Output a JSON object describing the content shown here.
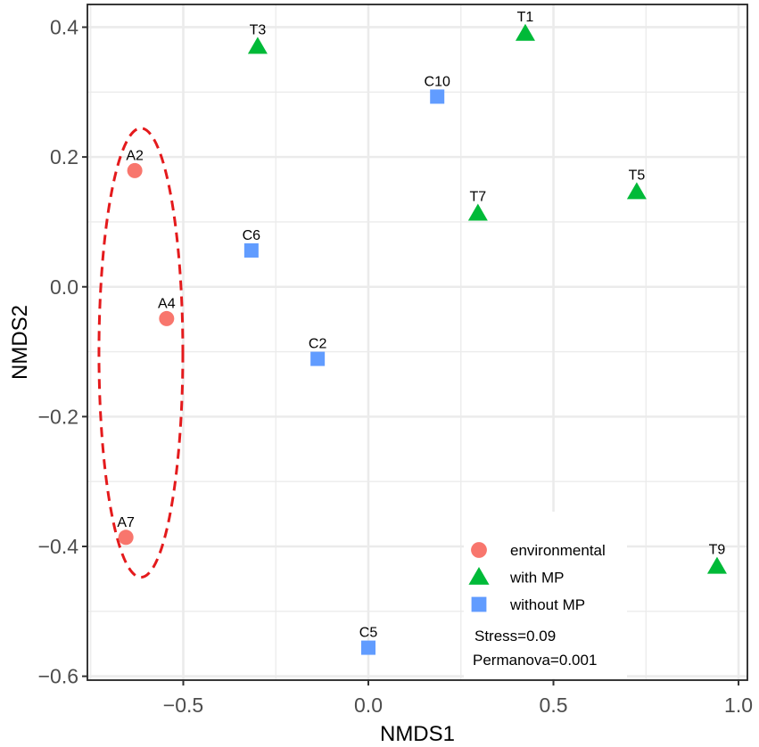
{
  "chart_data": {
    "type": "scatter",
    "title": "",
    "xlabel": "NMDS1",
    "ylabel": "NMDS2",
    "xlim": [
      -0.759,
      1.024
    ],
    "ylim": [
      -0.606,
      0.435
    ],
    "xticks": [
      {
        "value": -0.5,
        "label": "−0.5"
      },
      {
        "value": 0.0,
        "label": "0.0"
      },
      {
        "value": 0.5,
        "label": "0.5"
      },
      {
        "value": 1.0,
        "label": "1.0"
      }
    ],
    "yticks": [
      {
        "value": 0.4,
        "label": "0.4"
      },
      {
        "value": 0.2,
        "label": "0.2"
      },
      {
        "value": 0.0,
        "label": "0.0"
      },
      {
        "value": -0.2,
        "label": "−0.2"
      },
      {
        "value": -0.4,
        "label": "−0.4"
      },
      {
        "value": -0.6,
        "label": "−0.6"
      }
    ],
    "minor_xbreaks": [
      -0.75,
      -0.25,
      0.25,
      0.75
    ],
    "minor_ybreaks": [
      0.3,
      0.1,
      -0.1,
      -0.3,
      -0.5
    ],
    "grid": true,
    "legend_position": "bottom-right",
    "highlight_color": "#E41A1C",
    "series": [
      {
        "name": "environmental",
        "marker": "circle",
        "color": "#F8766D",
        "points": [
          {
            "label": "A2",
            "x": -0.631,
            "y": 0.179
          },
          {
            "label": "A4",
            "x": -0.545,
            "y": -0.049
          },
          {
            "label": "A7",
            "x": -0.655,
            "y": -0.386
          }
        ]
      },
      {
        "name": "with MP",
        "marker": "triangle",
        "color": "#00BA38",
        "points": [
          {
            "label": "T1",
            "x": 0.424,
            "y": 0.39
          },
          {
            "label": "T3",
            "x": -0.299,
            "y": 0.37
          },
          {
            "label": "T5",
            "x": 0.725,
            "y": 0.146
          },
          {
            "label": "T7",
            "x": 0.296,
            "y": 0.113
          },
          {
            "label": "T9",
            "x": 0.942,
            "y": -0.431
          }
        ]
      },
      {
        "name": "without MP",
        "marker": "square",
        "color": "#619CFF",
        "points": [
          {
            "label": "C2",
            "x": -0.137,
            "y": -0.111
          },
          {
            "label": "C5",
            "x": 0.0,
            "y": -0.556
          },
          {
            "label": "C6",
            "x": -0.316,
            "y": 0.056
          },
          {
            "label": "C10",
            "x": 0.186,
            "y": 0.293
          }
        ]
      }
    ],
    "annotations": {
      "stress": "Stress=0.09",
      "permanova": "Permanova=0.001"
    }
  }
}
